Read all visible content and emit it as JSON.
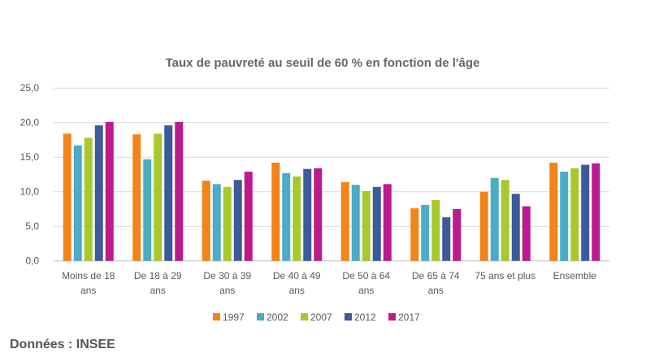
{
  "chart_data": {
    "type": "bar",
    "title": "Taux de pauvreté au seuil de 60 % en fonction de l'âge",
    "categories": [
      [
        "Moins de 18",
        "ans"
      ],
      [
        "De 18 à 29",
        "ans"
      ],
      [
        "De 30 à 39",
        "ans"
      ],
      [
        "De 40 à 49",
        "ans"
      ],
      [
        "De 50 à 64",
        "ans"
      ],
      [
        "De 65 à 74",
        "ans"
      ],
      [
        "75 ans et plus"
      ],
      [
        "Ensemble"
      ]
    ],
    "yticks": [
      "0,0",
      "5,0",
      "10,0",
      "15,0",
      "20,0",
      "25,0"
    ],
    "ylim": [
      0,
      25
    ],
    "grid": true,
    "legend_position": "bottom",
    "series": [
      {
        "name": "1997",
        "color": "#F28419",
        "values": [
          18.4,
          18.3,
          11.6,
          14.2,
          11.4,
          7.6,
          10.0,
          14.2
        ]
      },
      {
        "name": "2002",
        "color": "#4BACC6",
        "values": [
          16.7,
          14.7,
          11.1,
          12.7,
          11.0,
          8.1,
          12.0,
          12.9
        ]
      },
      {
        "name": "2007",
        "color": "#A8C92D",
        "values": [
          17.8,
          18.4,
          10.7,
          12.2,
          10.1,
          8.8,
          11.7,
          13.4
        ]
      },
      {
        "name": "2012",
        "color": "#3C5A9C",
        "values": [
          19.6,
          19.6,
          11.7,
          13.3,
          10.7,
          6.3,
          9.7,
          13.9
        ]
      },
      {
        "name": "2017",
        "color": "#BC1A8D",
        "values": [
          20.1,
          20.1,
          12.9,
          13.4,
          11.1,
          7.5,
          7.9,
          14.1
        ]
      }
    ]
  },
  "source": "Données : INSEE"
}
